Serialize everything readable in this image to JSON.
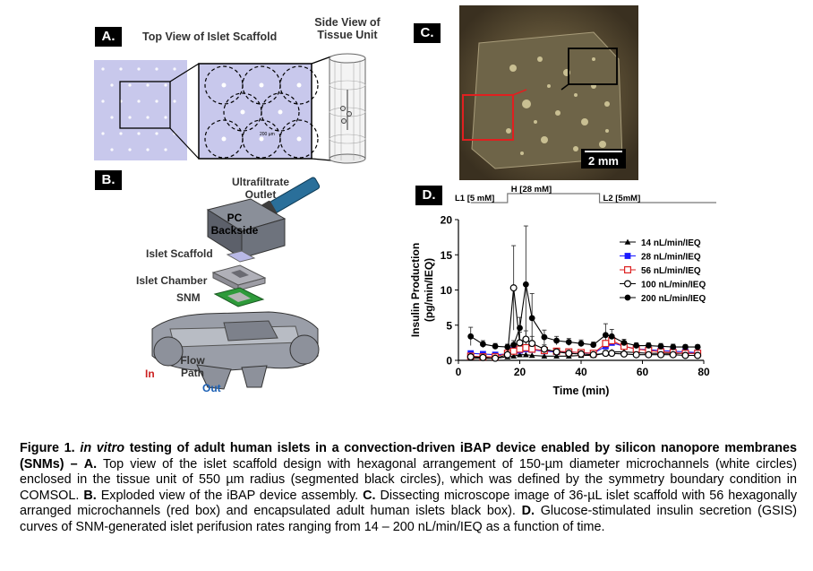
{
  "panel_a": {
    "tag": "A.",
    "title_top": "Top View of Islet Scaffold",
    "title_side_line1": "Side View of",
    "title_side_line2": "Tissue Unit",
    "scale_text": "200 µm"
  },
  "panel_b": {
    "tag": "B.",
    "labels": {
      "ultrafiltrate_line1": "Ultrafiltrate",
      "ultrafiltrate_line2": "Outlet",
      "pc_line1": "PC",
      "pc_line2": "Backside",
      "islet_scaffold": "Islet Scaffold",
      "islet_chamber": "Islet Chamber",
      "snm": "SNM",
      "flow_line1": "Flow",
      "flow_line2": "Path",
      "in": "In",
      "out": "Out"
    },
    "colors": {
      "in": "#cc2222",
      "out": "#1a5fb4"
    }
  },
  "panel_c": {
    "tag": "C.",
    "scale_bar": "2 mm"
  },
  "panel_d": {
    "tag": "D.",
    "phases": [
      "L1 [5 mM]",
      "H [28 mM]",
      "L2 [5mM]"
    ]
  },
  "chart_data": {
    "type": "line",
    "xlabel": "Time (min)",
    "ylabel_line1": "Insulin Production",
    "ylabel_line2": "(pg/min/IEQ)",
    "xlim": [
      0,
      80
    ],
    "ylim": [
      0,
      20
    ],
    "xticks": [
      0,
      20,
      40,
      60,
      80
    ],
    "yticks": [
      0,
      5,
      10,
      15,
      20
    ],
    "legend_position": "right",
    "x": [
      4,
      8,
      12,
      16,
      18,
      20,
      22,
      24,
      28,
      32,
      36,
      40,
      44,
      48,
      50,
      54,
      58,
      62,
      66,
      70,
      74,
      78
    ],
    "series": [
      {
        "name": "14 nL/min/IEQ",
        "marker": "triangle",
        "color": "#000000",
        "values": [
          0.3,
          0.3,
          0.3,
          0.5,
          0.6,
          0.8,
          0.8,
          0.7,
          0.6,
          0.6,
          0.6,
          0.7,
          0.7,
          1.0,
          1.2,
          1.2,
          1.1,
          1.0,
          1.0,
          1.0,
          1.0,
          1.0
        ]
      },
      {
        "name": "28 nL/min/IEQ",
        "marker": "square",
        "color": "#1a1aff",
        "values": [
          1.0,
          0.9,
          0.8,
          0.9,
          1.5,
          1.4,
          1.6,
          1.5,
          1.3,
          1.2,
          1.2,
          1.1,
          1.0,
          2.0,
          2.5,
          2.0,
          1.6,
          1.5,
          1.4,
          1.3,
          1.2,
          1.1
        ]
      },
      {
        "name": "56 nL/min/IEQ",
        "marker": "open-square",
        "color": "#dd2222",
        "values": [
          0.6,
          0.5,
          0.5,
          1.0,
          1.3,
          1.6,
          1.8,
          1.6,
          1.4,
          1.3,
          1.2,
          1.1,
          1.0,
          2.4,
          2.8,
          2.0,
          1.6,
          1.4,
          1.2,
          1.1,
          1.0,
          1.0
        ]
      },
      {
        "name": "100 nL/min/IEQ",
        "marker": "open-circle",
        "color": "#000000",
        "values": [
          0.5,
          0.4,
          0.3,
          0.8,
          10.3,
          2.5,
          3.0,
          2.4,
          1.6,
          1.2,
          1.0,
          0.9,
          0.8,
          1.0,
          1.0,
          0.9,
          0.8,
          0.8,
          0.8,
          0.8,
          0.7,
          0.7
        ]
      },
      {
        "name": "200 nL/min/IEQ",
        "marker": "circle",
        "color": "#000000",
        "values": [
          3.4,
          2.3,
          2.0,
          1.9,
          2.2,
          4.6,
          10.8,
          6.0,
          3.3,
          2.8,
          2.6,
          2.4,
          2.2,
          3.6,
          3.4,
          2.5,
          2.1,
          2.1,
          2.0,
          1.9,
          1.9,
          1.9
        ]
      }
    ],
    "error_bars_200": [
      1.3,
      0.5,
      0.4,
      0.4,
      0.6,
      1.5,
      8.3,
      3.5,
      1.0,
      0.6,
      0.5,
      0.5,
      0.4,
      1.6,
      1.0,
      0.5,
      0.4,
      0.4,
      0.4,
      0.4,
      0.3,
      0.3
    ],
    "error_bars_100": [
      0.3,
      0.2,
      0.2,
      0.4,
      6.0,
      1.5,
      1.2,
      1.0,
      0.6,
      0.4,
      0.3,
      0.3,
      0.3,
      0.4,
      0.4,
      0.3,
      0.3,
      0.3,
      0.3,
      0.3,
      0.3,
      0.3
    ]
  },
  "caption": {
    "fig_label": "Figure 1.",
    "italic_part": "in vitro",
    "bold_title": "testing of adult human islets in a convection-driven iBAP device enabled by silicon nanopore membranes (SNMs) –",
    "a_tag": "A.",
    "a_text": "Top view of the islet scaffold design with hexagonal arrangement of 150-µm diameter microchannels (white circles) enclosed in the tissue unit of 550 µm radius (segmented black circles), which was defined by the symmetry boundary condition in COMSOL.",
    "b_tag": "B.",
    "b_text": "Exploded view of the iBAP device assembly.",
    "c_tag": "C.",
    "c_text": "Dissecting microscope image of 36-µL islet scaffold with 56 hexagonally arranged microchannels (red box) and encapsulated adult human islets black box).",
    "d_tag": "D.",
    "d_text": "Glucose-stimulated insulin secretion (GSIS) curves of SNM-generated islet perifusion rates ranging from 14 – 200 nL/min/IEQ as a function of time."
  }
}
